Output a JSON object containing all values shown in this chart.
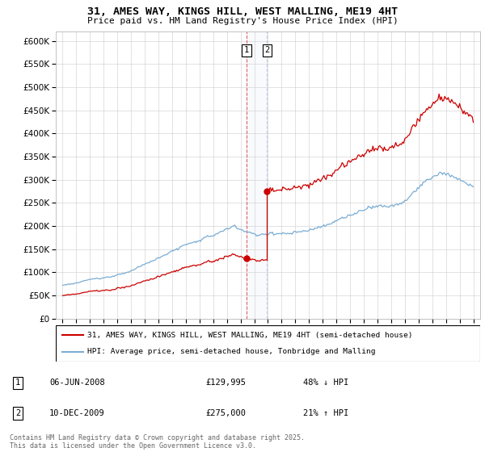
{
  "title": "31, AMES WAY, KINGS HILL, WEST MALLING, ME19 4HT",
  "subtitle": "Price paid vs. HM Land Registry's House Price Index (HPI)",
  "legend_line1": "31, AMES WAY, KINGS HILL, WEST MALLING, ME19 4HT (semi-detached house)",
  "legend_line2": "HPI: Average price, semi-detached house, Tonbridge and Malling",
  "transaction1_date": "06-JUN-2008",
  "transaction1_price": "£129,995",
  "transaction1_hpi": "48% ↓ HPI",
  "transaction2_date": "10-DEC-2009",
  "transaction2_price": "£275,000",
  "transaction2_hpi": "21% ↑ HPI",
  "footer": "Contains HM Land Registry data © Crown copyright and database right 2025.\nThis data is licensed under the Open Government Licence v3.0.",
  "red_color": "#cc0000",
  "blue_color": "#7aadd4",
  "t1_price": 129995,
  "t2_price": 275000,
  "t1_year": 2008.44,
  "t2_year": 2009.94,
  "hpi_base_1995": 72000,
  "ylim_min": 0,
  "ylim_max": 620000,
  "xlim_min": 1994.5,
  "xlim_max": 2025.5
}
